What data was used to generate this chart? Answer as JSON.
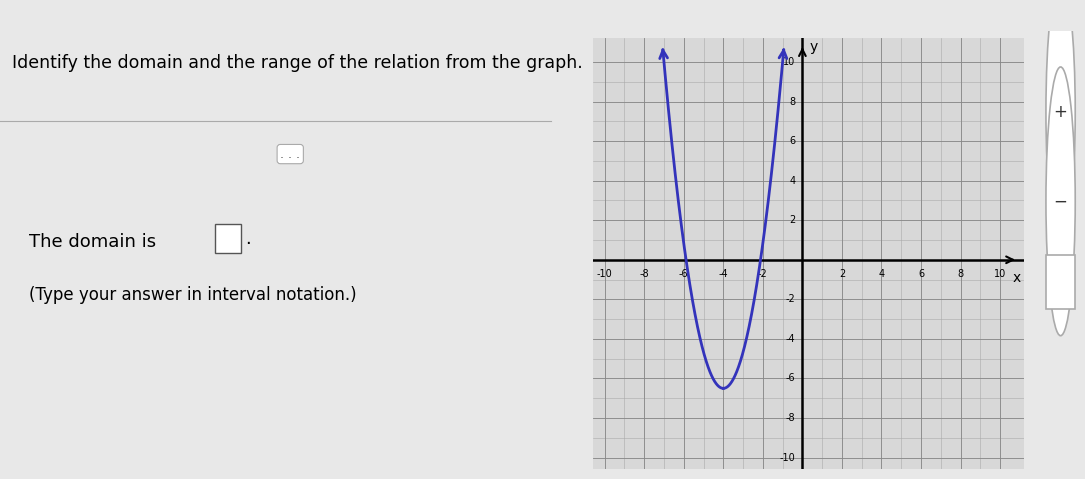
{
  "title": "Identify the domain and the range of the relation from the graph.",
  "domain_text": "The domain is",
  "interval_text": "(Type your answer in interval notation.)",
  "x_min": -10,
  "x_max": 10,
  "y_min": -10,
  "y_max": 10,
  "curve_color": "#3333BB",
  "curve_linewidth": 2.0,
  "parabola_vertex_x": -4.0,
  "parabola_vertex_y": -6.5,
  "parabola_left_x": -7.0,
  "parabola_right_x": -1.0,
  "bg_left": "#e8e8e8",
  "bg_right": "#d8d8d8",
  "text_color": "#000000",
  "title_color": "#000000",
  "axis_label_color": "#000000",
  "grid_color_minor": "#bbbbbb",
  "grid_color_major": "#999999",
  "top_bar_color": "#2288cc"
}
